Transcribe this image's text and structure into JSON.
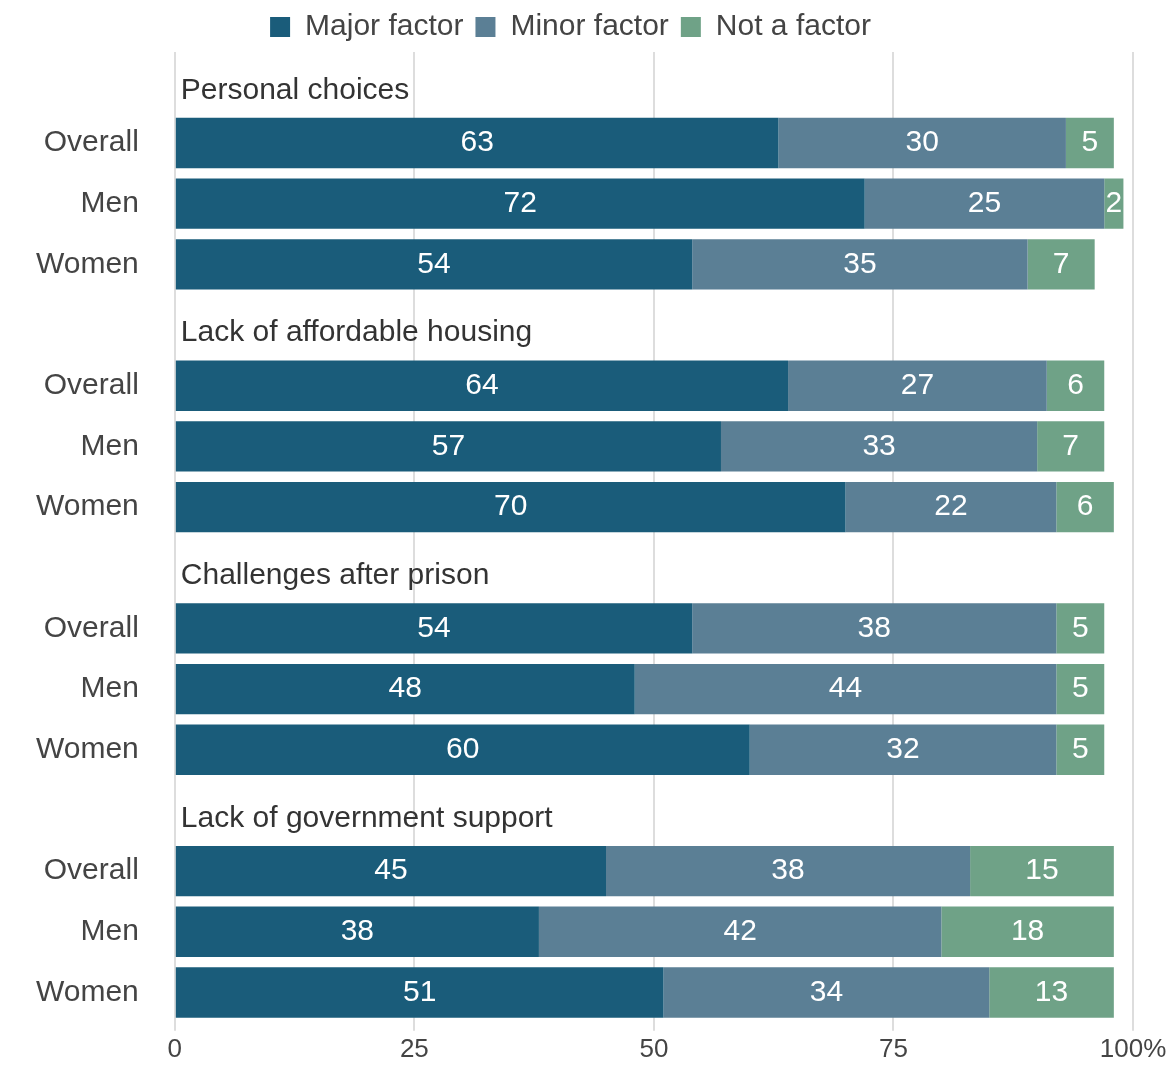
{
  "chart_data": {
    "type": "bar",
    "orientation": "horizontal",
    "stacked": true,
    "categories": [
      null,
      "Overall",
      "Men",
      "Women",
      null,
      "Overall",
      "Men",
      "Women",
      null,
      "Overall",
      "Men",
      "Women",
      null,
      "Overall",
      "Men",
      "Women"
    ],
    "annotations": [
      "Personal choices",
      "Lack of affordable housing",
      "Challenges after prison",
      "Lack of government support"
    ],
    "series": [
      {
        "name": "Major factor",
        "color": "#1a5c7a",
        "values": [
          null,
          63,
          72,
          54,
          null,
          64,
          57,
          70,
          null,
          54,
          48,
          60,
          null,
          45,
          38,
          51
        ]
      },
      {
        "name": "Minor factor",
        "color": "#5b7f95",
        "values": [
          null,
          30,
          25,
          35,
          null,
          27,
          33,
          22,
          null,
          38,
          44,
          32,
          null,
          38,
          42,
          34
        ]
      },
      {
        "name": "Not a factor",
        "color": "#6fa287",
        "values": [
          null,
          5,
          2,
          7,
          null,
          6,
          7,
          6,
          null,
          5,
          5,
          5,
          null,
          15,
          18,
          13
        ]
      }
    ],
    "xlim": [
      0,
      100
    ],
    "xticks": [
      0,
      25,
      50,
      75,
      {
        "value": 100,
        "label": "100%"
      }
    ],
    "grid": "x",
    "legend": "top",
    "data_labels": true
  }
}
